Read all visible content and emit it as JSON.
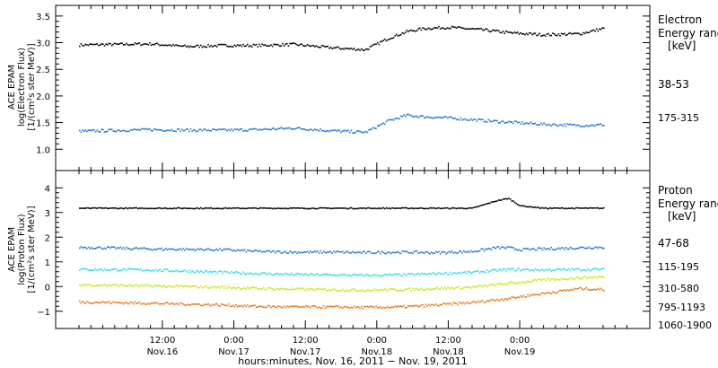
{
  "chart_data": [
    {
      "type": "scatter",
      "panel": "electron",
      "ylabel_lines": [
        "ACE EPAM",
        "log(Electron Flux)",
        "[1/(cm²s ster MeV)]"
      ],
      "yticks": [
        "1.0",
        "1.5",
        "2.0",
        "2.5",
        "3.0",
        "3.5"
      ],
      "ylim": [
        0.6,
        3.7
      ],
      "legend_title": [
        "Electron",
        "Energy ranges",
        "[keV]"
      ],
      "series": [
        {
          "name": "38-53",
          "color": "#000000",
          "x": [
            0,
            12,
            18,
            24,
            30,
            36,
            42,
            48,
            52,
            55,
            58,
            62,
            68,
            72,
            78,
            84,
            88
          ],
          "y": [
            2.97,
            2.99,
            2.94,
            2.96,
            2.96,
            2.98,
            2.92,
            2.88,
            3.1,
            3.22,
            3.28,
            3.3,
            3.25,
            3.2,
            3.16,
            3.18,
            3.28
          ]
        },
        {
          "name": "175-315",
          "color": "#1e78d2",
          "x": [
            0,
            12,
            18,
            24,
            30,
            36,
            42,
            48,
            52,
            55,
            58,
            62,
            68,
            72,
            78,
            84,
            88
          ],
          "y": [
            1.35,
            1.38,
            1.37,
            1.37,
            1.38,
            1.41,
            1.36,
            1.33,
            1.55,
            1.65,
            1.62,
            1.6,
            1.55,
            1.52,
            1.48,
            1.46,
            1.47
          ]
        }
      ]
    },
    {
      "type": "scatter",
      "panel": "proton",
      "ylabel_lines": [
        "ACE EPAM",
        "log(Proton Flux)",
        "[1/(cm²s ster MeV)]"
      ],
      "yticks": [
        "−1",
        "0",
        "1",
        "2",
        "3",
        "4"
      ],
      "ylim": [
        -1.7,
        4.7
      ],
      "legend_title": [
        "Proton",
        "Energy ranges",
        "[keV]"
      ],
      "series": [
        {
          "name": "47-68",
          "color": "#000000",
          "x": [
            0,
            12,
            24,
            30,
            36,
            42,
            48,
            54,
            60,
            66,
            70,
            72,
            74,
            78,
            84,
            88
          ],
          "y": [
            3.2,
            3.2,
            3.2,
            3.2,
            3.2,
            3.2,
            3.2,
            3.2,
            3.2,
            3.2,
            3.5,
            3.6,
            3.3,
            3.2,
            3.2,
            3.2
          ]
        },
        {
          "name": "115-195",
          "color": "#1e78d2",
          "x": [
            0,
            12,
            24,
            30,
            36,
            42,
            48,
            54,
            60,
            66,
            70,
            72,
            74,
            78,
            84,
            88
          ],
          "y": [
            1.62,
            1.55,
            1.52,
            1.45,
            1.42,
            1.42,
            1.4,
            1.42,
            1.4,
            1.45,
            1.6,
            1.6,
            1.52,
            1.55,
            1.6,
            1.62
          ]
        },
        {
          "name": "310-580",
          "color": "#33dddd",
          "x": [
            0,
            12,
            24,
            30,
            36,
            42,
            48,
            54,
            60,
            66,
            72,
            78,
            84,
            88
          ],
          "y": [
            0.72,
            0.7,
            0.6,
            0.55,
            0.52,
            0.5,
            0.48,
            0.5,
            0.55,
            0.6,
            0.72,
            0.7,
            0.72,
            0.72
          ]
        },
        {
          "name": "795-1193",
          "color": "#c8e614",
          "x": [
            0,
            12,
            24,
            30,
            36,
            42,
            48,
            54,
            60,
            66,
            72,
            78,
            84,
            88
          ],
          "y": [
            0.1,
            0.05,
            0.0,
            -0.05,
            -0.08,
            -0.1,
            -0.12,
            -0.1,
            -0.05,
            0.0,
            0.15,
            0.3,
            0.38,
            0.42
          ]
        },
        {
          "name": "1060-1900",
          "color": "#e6781e",
          "x": [
            0,
            12,
            24,
            30,
            36,
            42,
            48,
            54,
            60,
            66,
            72,
            78,
            84,
            88
          ],
          "y": [
            -0.6,
            -0.65,
            -0.72,
            -0.78,
            -0.8,
            -0.8,
            -0.82,
            -0.8,
            -0.72,
            -0.62,
            -0.45,
            -0.25,
            -0.05,
            -0.1
          ]
        }
      ]
    }
  ],
  "x_axis": {
    "ticks": [
      {
        "time": "12:00",
        "date": "Nov.16"
      },
      {
        "time": "0:00",
        "date": "Nov.17"
      },
      {
        "time": "12:00",
        "date": "Nov.17"
      },
      {
        "time": "0:00",
        "date": "Nov.18"
      },
      {
        "time": "12:00",
        "date": "Nov.18"
      },
      {
        "time": "0:00",
        "date": "Nov.19"
      }
    ],
    "label": "hours:minutes, Nov. 16, 2011 − Nov. 19, 2011"
  }
}
